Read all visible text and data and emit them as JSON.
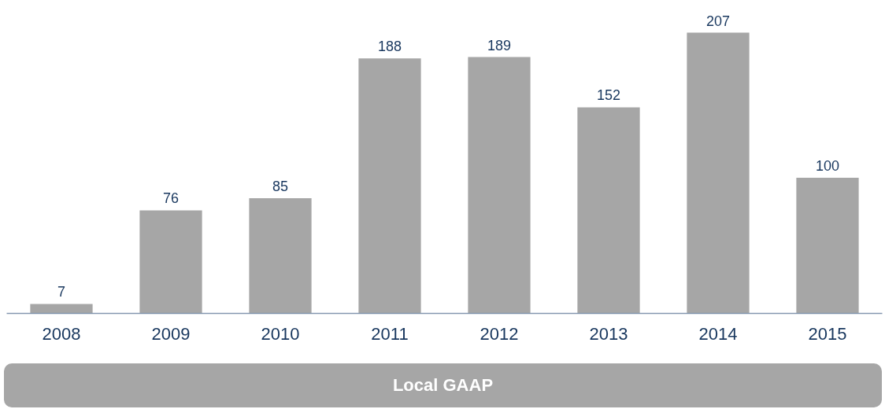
{
  "chart_data": {
    "type": "bar",
    "categories": [
      "2008",
      "2009",
      "2010",
      "2011",
      "2012",
      "2013",
      "2014",
      "2015"
    ],
    "values": [
      7,
      76,
      85,
      188,
      189,
      152,
      207,
      100
    ],
    "color": "#a6a6a6",
    "data_labels": true,
    "tick_labels": "x",
    "annotations": [
      "Local GAAP"
    ]
  }
}
